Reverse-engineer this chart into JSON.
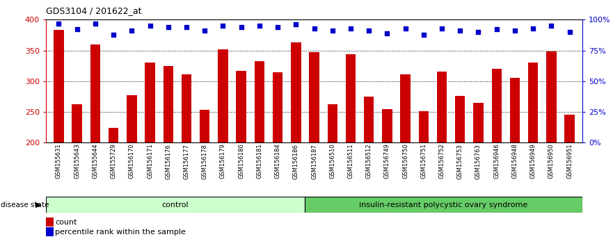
{
  "title": "GDS3104 / 201622_at",
  "samples": [
    "GSM155631",
    "GSM155643",
    "GSM155644",
    "GSM155729",
    "GSM156170",
    "GSM156171",
    "GSM156176",
    "GSM156177",
    "GSM156178",
    "GSM156179",
    "GSM156180",
    "GSM156181",
    "GSM156184",
    "GSM156186",
    "GSM156187",
    "GSM156510",
    "GSM156511",
    "GSM156512",
    "GSM156749",
    "GSM156750",
    "GSM156751",
    "GSM156752",
    "GSM156753",
    "GSM156763",
    "GSM156946",
    "GSM156948",
    "GSM156949",
    "GSM156950",
    "GSM156951"
  ],
  "counts": [
    383,
    262,
    360,
    224,
    277,
    330,
    325,
    311,
    253,
    352,
    317,
    333,
    315,
    363,
    347,
    263,
    344,
    275,
    255,
    311,
    251,
    316,
    276,
    265,
    320,
    305,
    330,
    348,
    246
  ],
  "percentile_ranks": [
    97,
    92,
    97,
    88,
    91,
    95,
    94,
    94,
    91,
    95,
    94,
    95,
    94,
    96,
    93,
    91,
    93,
    91,
    89,
    93,
    88,
    93,
    91,
    90,
    92,
    91,
    93,
    95,
    90
  ],
  "control_count": 14,
  "disease_label": "insulin-resistant polycystic ovary syndrome",
  "control_label": "control",
  "bar_color": "#cc0000",
  "dot_color": "#0000cc",
  "ymin": 200,
  "ymax": 400,
  "yticks": [
    200,
    250,
    300,
    350,
    400
  ],
  "right_ytick_labels": [
    "0%",
    "25%",
    "50%",
    "75%",
    "100%"
  ],
  "control_bg": "#ccffcc",
  "disease_bg": "#66cc66",
  "legend_count_label": "count",
  "legend_pct_label": "percentile rank within the sample"
}
